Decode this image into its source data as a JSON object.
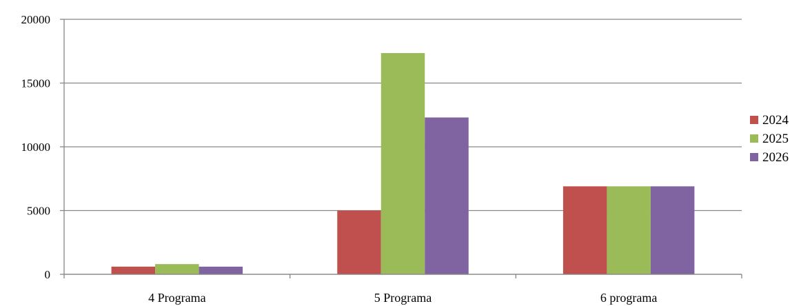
{
  "chart_data": {
    "type": "bar",
    "title": "",
    "xlabel": "",
    "ylabel": "",
    "categories": [
      "4 Programa",
      "5 Programa",
      "6 programa"
    ],
    "series": [
      {
        "name": "2024",
        "color": "#c0504d",
        "values": [
          600,
          5000,
          6900
        ]
      },
      {
        "name": "2025",
        "color": "#9bbb59",
        "values": [
          800,
          17350,
          6900
        ]
      },
      {
        "name": "2026",
        "color": "#8064a2",
        "values": [
          600,
          12300,
          6900
        ]
      }
    ],
    "ylim": [
      0,
      20000
    ],
    "yticks": [
      0,
      5000,
      10000,
      15000,
      20000
    ],
    "grid": true,
    "legend": "right"
  }
}
